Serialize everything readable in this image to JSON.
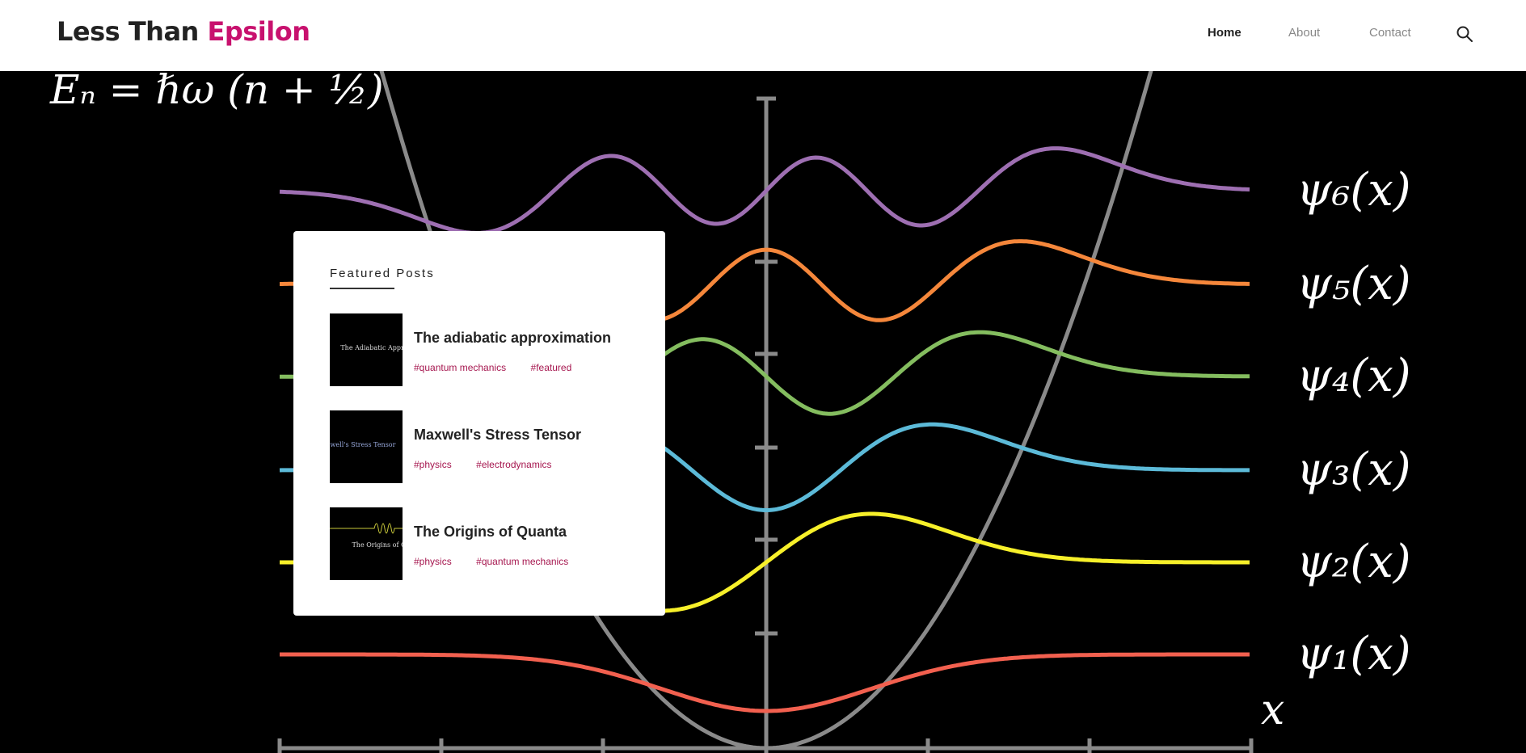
{
  "header": {
    "logo_part1": "Less Than",
    "logo_part2": "Epsilon",
    "nav": [
      {
        "label": "Home",
        "active": true
      },
      {
        "label": "About",
        "active": false
      },
      {
        "label": "Contact",
        "active": false
      }
    ]
  },
  "hero": {
    "energy_formula": "Eₙ = ℏω (n + ½)",
    "axis_label": "x",
    "wavefunctions": [
      {
        "label": "ψ₆(x)",
        "color": "#9e6fb2"
      },
      {
        "label": "ψ₅(x)",
        "color": "#f5873b"
      },
      {
        "label": "ψ₄(x)",
        "color": "#84bd5f"
      },
      {
        "label": "ψ₃(x)",
        "color": "#5cbad8"
      },
      {
        "label": "ψ₂(x)",
        "color": "#f7f02a"
      },
      {
        "label": "ψ₁(x)",
        "color": "#f2604f"
      }
    ],
    "parabola_color": "#8a8a8a"
  },
  "featured": {
    "title": "Featured Posts",
    "posts": [
      {
        "title": "The adiabatic approximation",
        "thumb_text": "The Adiabatic Appro",
        "tags": [
          "#quantum mechanics",
          "#featured"
        ]
      },
      {
        "title": "Maxwell's Stress Tensor",
        "thumb_text": "well's Stress Tensor",
        "tags": [
          "#physics",
          "#electrodynamics"
        ]
      },
      {
        "title": "The Origins of Quanta",
        "thumb_text": "The Origins of Q",
        "tags": [
          "#physics",
          "#quantum mechanics"
        ]
      }
    ]
  }
}
